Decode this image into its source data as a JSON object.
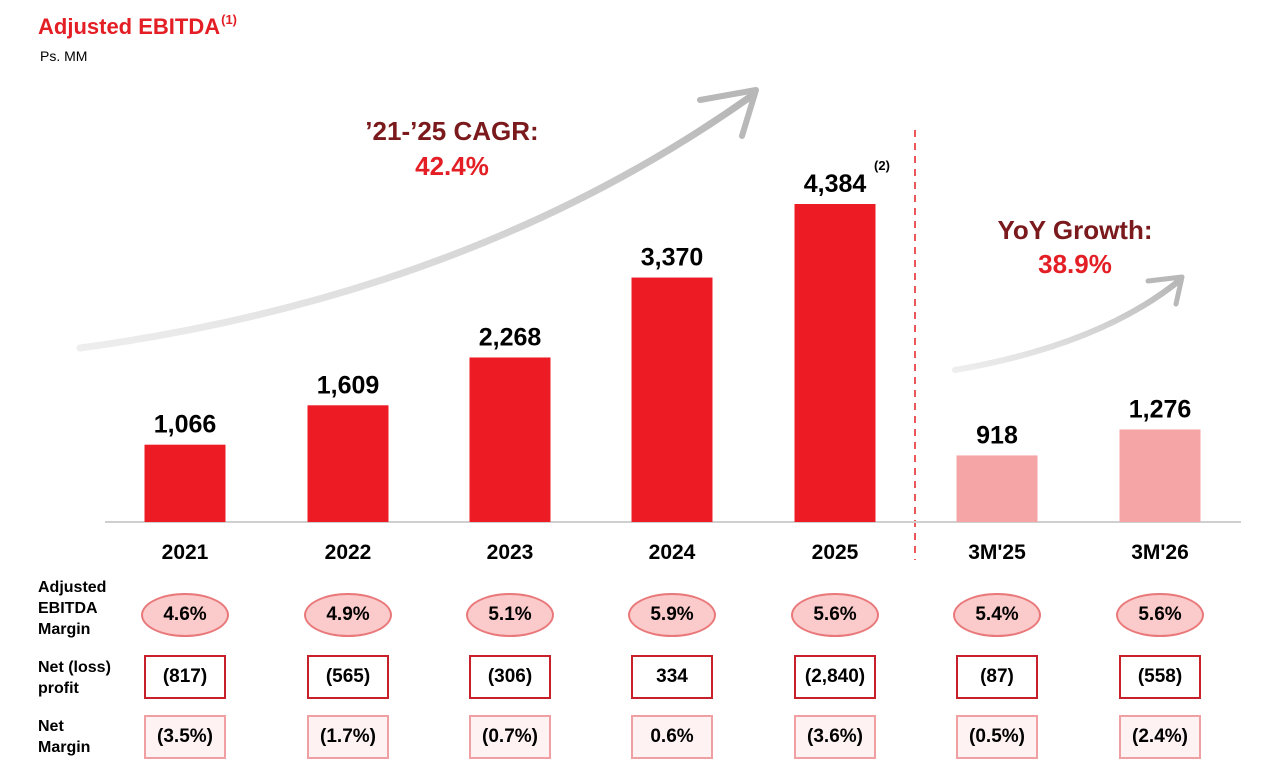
{
  "title": "Adjusted EBITDA",
  "title_note": "(1)",
  "unit": "Ps. MM",
  "cagr": {
    "label": "’21-’25 CAGR:",
    "value": "42.4%"
  },
  "yoy": {
    "label": "YoY Growth:",
    "value": "38.9%"
  },
  "chart_data": {
    "type": "bar",
    "categories": [
      "2021",
      "2022",
      "2023",
      "2024",
      "2025",
      "3M'25",
      "3M'26"
    ],
    "values": [
      1066,
      1609,
      2268,
      3370,
      4384,
      918,
      1276
    ],
    "value_labels": [
      "1,066",
      "1,609",
      "2,268",
      "3,370",
      "4,384",
      "918",
      "1,276"
    ],
    "value_notes": [
      "",
      "",
      "",
      "",
      "(2)",
      "",
      ""
    ],
    "ylim": [
      0,
      4384
    ],
    "colors": [
      "#ed1c24",
      "#ed1c24",
      "#ed1c24",
      "#ed1c24",
      "#ed1c24",
      "#f6a5a7",
      "#f6a5a7"
    ],
    "title": "Adjusted EBITDA",
    "xlabel": "",
    "ylabel": ""
  },
  "table": {
    "margin_label": "Adjusted EBITDA Margin",
    "margin_values": [
      "4.6%",
      "4.9%",
      "5.1%",
      "5.9%",
      "5.6%",
      "5.4%",
      "5.6%"
    ],
    "net_label": "Net (loss) profit",
    "net_values": [
      "(817)",
      "(565)",
      "(306)",
      "334",
      "(2,840)",
      "(87)",
      "(558)"
    ],
    "netmargin_label": "Net Margin",
    "netmargin_values": [
      "(3.5%)",
      "(1.7%)",
      "(0.7%)",
      "0.6%",
      "(3.6%)",
      "(0.5%)",
      "(2.4%)"
    ]
  }
}
